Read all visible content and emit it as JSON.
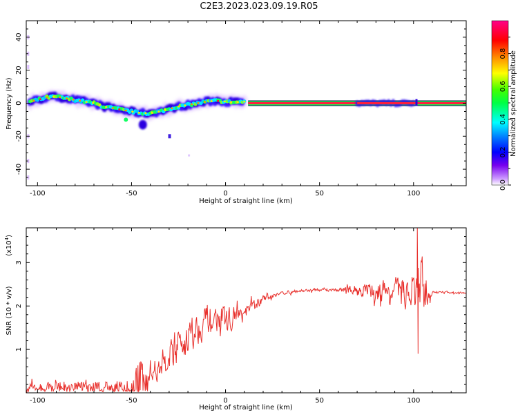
{
  "figure_title": "C2E3.2023.023.09.19.R05",
  "colors": {
    "snr_line": "#e8302c",
    "dominant_band": "#ff1e3c"
  },
  "colorbar": {
    "label": "Normalized spectral amplitude",
    "colormap": "rainbow (white-purple-blue-cyan-green-yellow-orange-red-magenta)",
    "ticks": [
      "0.0",
      "0.2",
      "0.4",
      "0.6",
      "0.8"
    ]
  },
  "chart_data": [
    {
      "type": "heatmap",
      "name": "spectrogram",
      "xlabel": "Height of straight line (km)",
      "ylabel": "Frequency (Hz)",
      "xlim": [
        -106,
        128
      ],
      "ylim": [
        -50,
        50
      ],
      "x_ticks": [
        "-100",
        "-50",
        "0",
        "50",
        "100"
      ],
      "y_ticks": [
        "40",
        "20",
        "0",
        "-20",
        "-40"
      ],
      "ridge": {
        "x": [
          -104,
          -100,
          -95,
          -90,
          -85,
          -80,
          -75,
          -70,
          -65,
          -60,
          -55,
          -50,
          -45,
          -40,
          -35,
          -30,
          -25,
          -20,
          -15,
          -10,
          -5,
          0,
          5,
          10
        ],
        "y": [
          1,
          2,
          3.5,
          4,
          3,
          2,
          1,
          0,
          -2,
          -3,
          -4,
          -5,
          -6,
          -6,
          -5,
          -3.5,
          -2,
          -1,
          0,
          1,
          1.5,
          1,
          0.5,
          1
        ]
      },
      "dominant_band": {
        "x_start": 12,
        "x_end": 128,
        "frequency": 0
      },
      "late_segment": {
        "x_start": 70,
        "x_end": 101,
        "frequency": 0
      }
    },
    {
      "type": "line",
      "name": "snr",
      "xlabel": "Height of straight line (km)",
      "ylabel": "SNR (10 * v/v)",
      "scale_label": "(x10",
      "scale_exponent": "4",
      "xlim": [
        -106,
        128
      ],
      "ylim": [
        0,
        3.8
      ],
      "x_ticks": [
        "-100",
        "-50",
        "0",
        "50",
        "100"
      ],
      "y_ticks": [
        "1",
        "2",
        "3"
      ],
      "trend": {
        "x": [
          -106,
          -80,
          -60,
          -50,
          -45,
          -40,
          -35,
          -30,
          -25,
          -20,
          -15,
          -10,
          -5,
          0,
          5,
          10,
          15,
          20,
          25,
          30,
          40,
          50,
          60,
          70,
          80,
          90,
          100,
          105,
          110,
          128
        ],
        "y": [
          0.15,
          0.2,
          0.2,
          0.2,
          0.3,
          0.4,
          0.6,
          0.9,
          1.1,
          1.3,
          1.5,
          1.7,
          1.7,
          1.7,
          1.75,
          1.8,
          2.0,
          2.15,
          2.25,
          2.3,
          2.35,
          2.37,
          2.37,
          2.37,
          2.35,
          2.3,
          2.35,
          2.33,
          2.32,
          2.3
        ]
      },
      "noise_amplitude": {
        "x": [
          -106,
          -50,
          -45,
          -40,
          -30,
          -20,
          -10,
          0,
          10,
          20,
          30,
          60,
          70,
          80,
          90,
          100,
          103,
          110,
          128
        ],
        "y": [
          0.12,
          0.12,
          0.25,
          0.3,
          0.5,
          0.6,
          0.45,
          0.35,
          0.25,
          0.12,
          0.05,
          0.05,
          0.2,
          0.3,
          0.45,
          0.6,
          1.2,
          0.04,
          0.03
        ]
      },
      "peak": {
        "x": 102,
        "y": 3.8
      }
    }
  ]
}
